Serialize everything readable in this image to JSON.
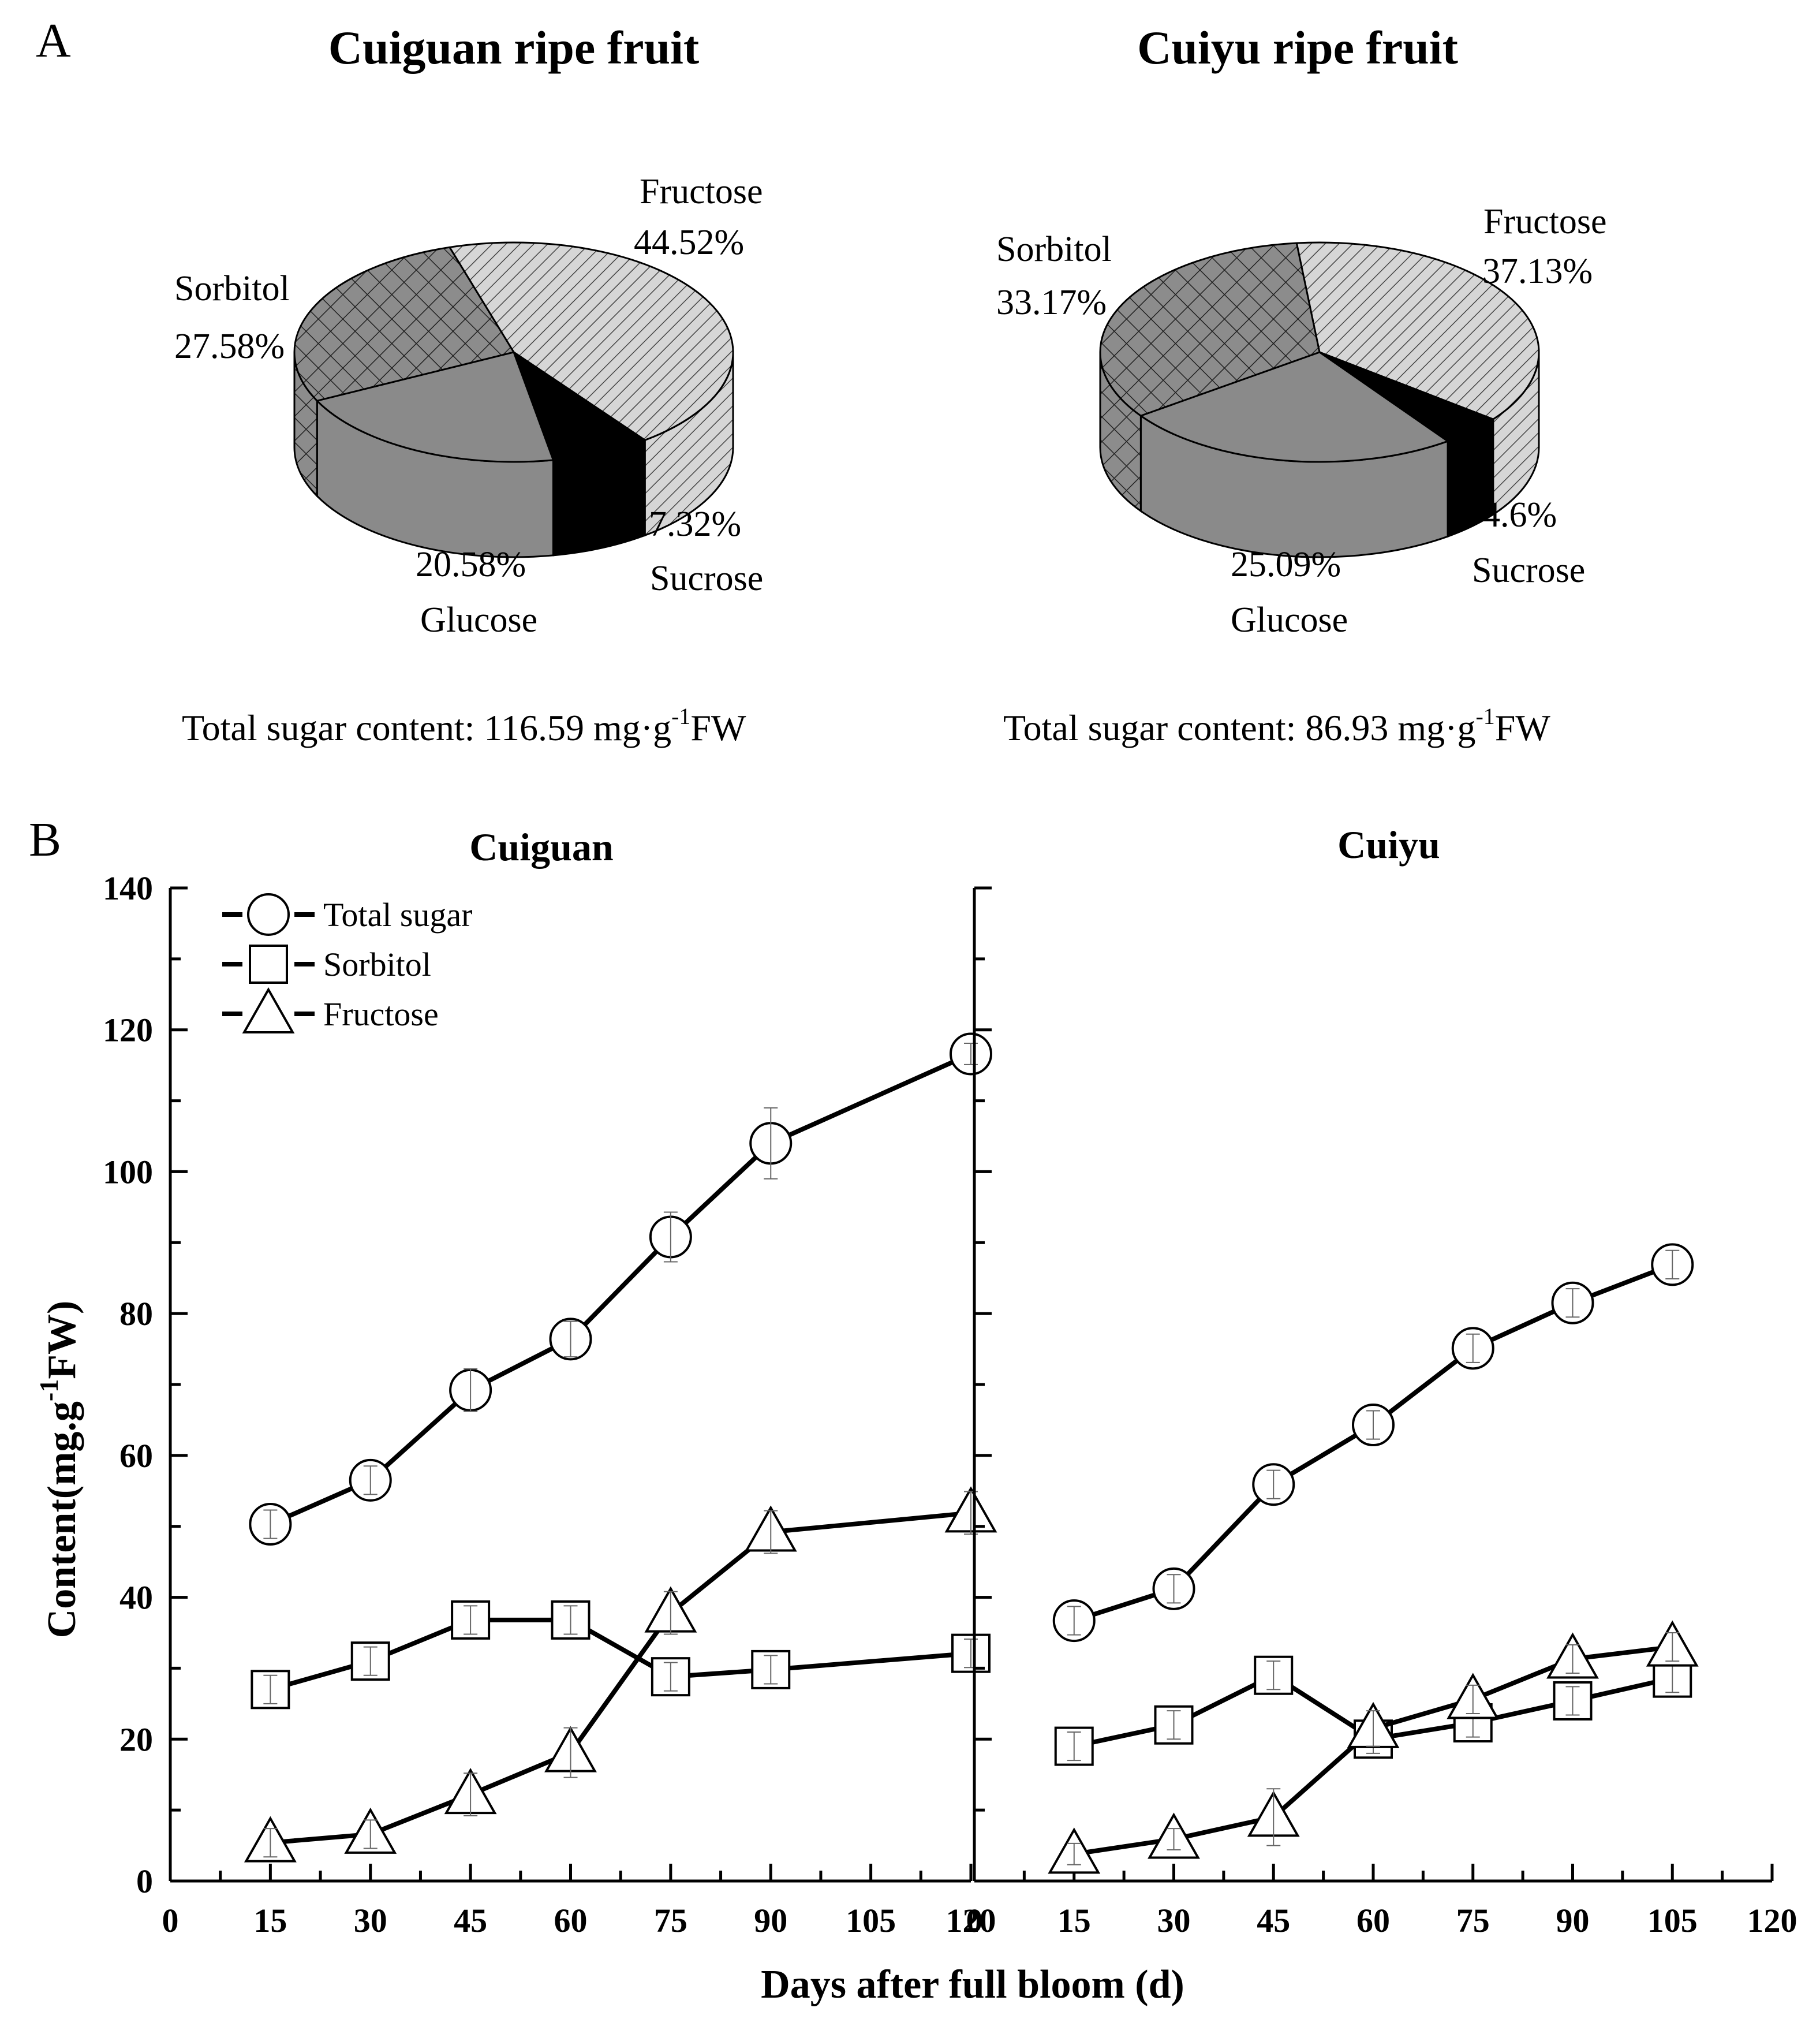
{
  "figure": {
    "panel_a_label": "A",
    "panel_b_label": "B"
  },
  "chart_data": [
    {
      "type": "pie",
      "title": "Cuiguan ripe fruit",
      "labels": [
        "Fructose",
        "Sucrose",
        "Glucose",
        "Sorbitol"
      ],
      "values": [
        44.52,
        7.32,
        20.58,
        27.58
      ],
      "value_labels": [
        "44.52%",
        "7.32%",
        "20.58%",
        "27.58%"
      ],
      "footer": {
        "prefix": "Total sugar content: 116.59 mg·g",
        "sup": "-1",
        "suffix": "FW"
      }
    },
    {
      "type": "pie",
      "title": "Cuiyu ripe fruit",
      "labels": [
        "Fructose",
        "Sucrose",
        "Glucose",
        "Sorbitol"
      ],
      "values": [
        37.13,
        4.6,
        25.09,
        33.17
      ],
      "value_labels": [
        "37.13%",
        "4.6%",
        "25.09%",
        "33.17%"
      ],
      "footer": {
        "prefix": "Total sugar content: 86.93 mg·g",
        "sup": "-1",
        "suffix": "FW"
      }
    },
    {
      "type": "line",
      "title": "Cuiguan",
      "xlim": [
        0,
        120
      ],
      "ylim": [
        0,
        140
      ],
      "xticks": [
        0,
        15,
        30,
        45,
        60,
        75,
        90,
        105,
        120
      ],
      "yticks": [
        0,
        20,
        40,
        60,
        80,
        100,
        120,
        140
      ],
      "series": [
        {
          "name": "Total  sugar",
          "marker": "circle",
          "x": [
            15,
            30,
            45,
            60,
            75,
            90,
            120
          ],
          "y": [
            50.3,
            56.5,
            69.2,
            76.4,
            90.8,
            104.0,
            116.6
          ],
          "err": [
            2.0,
            2.0,
            3.0,
            2.5,
            3.5,
            5.0,
            1.5
          ]
        },
        {
          "name": "Sorbitol",
          "marker": "square",
          "x": [
            15,
            30,
            45,
            60,
            75,
            90,
            120
          ],
          "y": [
            27.0,
            31.0,
            36.8,
            36.8,
            28.8,
            29.8,
            32.1
          ],
          "err": [
            2.0,
            2.0,
            2.0,
            2.0,
            2.0,
            2.0,
            2.0
          ]
        },
        {
          "name": "Fructose",
          "marker": "triangle",
          "x": [
            15,
            30,
            45,
            60,
            75,
            90,
            120
          ],
          "y": [
            5.4,
            6.6,
            12.2,
            18.1,
            37.8,
            49.2,
            51.9
          ],
          "err": [
            2.0,
            2.0,
            3.0,
            3.5,
            3.0,
            3.0,
            3.0
          ]
        }
      ]
    },
    {
      "type": "line",
      "title": "Cuiyu",
      "xlim": [
        0,
        120
      ],
      "ylim": [
        0,
        140
      ],
      "xticks": [
        0,
        15,
        30,
        45,
        60,
        75,
        90,
        105,
        120
      ],
      "series": [
        {
          "name": "Total  sugar",
          "marker": "circle",
          "x": [
            15,
            30,
            45,
            60,
            75,
            90,
            105
          ],
          "y": [
            36.7,
            41.2,
            55.9,
            64.3,
            75.1,
            81.5,
            86.9
          ],
          "err": [
            2.0,
            2.0,
            2.0,
            2.0,
            2.0,
            2.0,
            2.0
          ]
        },
        {
          "name": "Sorbitol",
          "marker": "square",
          "x": [
            15,
            30,
            45,
            60,
            75,
            90,
            105
          ],
          "y": [
            19.0,
            22.0,
            29.0,
            20.0,
            22.3,
            25.4,
            28.6
          ],
          "err": [
            2.0,
            2.0,
            2.0,
            2.0,
            2.0,
            2.0,
            2.0
          ]
        },
        {
          "name": "Fructose",
          "marker": "triangle",
          "x": [
            15,
            30,
            45,
            60,
            75,
            90,
            105
          ],
          "y": [
            3.8,
            5.9,
            9.0,
            21.5,
            25.6,
            31.3,
            33.0
          ],
          "err": [
            1.5,
            1.5,
            4.0,
            2.5,
            2.0,
            2.0,
            2.0
          ]
        }
      ]
    }
  ],
  "axes": {
    "ylabel": "Content(mg.g",
    "ylabel_sup": "-1",
    "ylabel_suffix": "FW)",
    "xlabel": "Days after full bloom (d)"
  },
  "colors": {
    "fructose": "#d6d6d6",
    "sorbitol": "#8c8c8c",
    "glucose": "#8a8a8a",
    "sucrose": "#000000",
    "line": "#000000"
  }
}
